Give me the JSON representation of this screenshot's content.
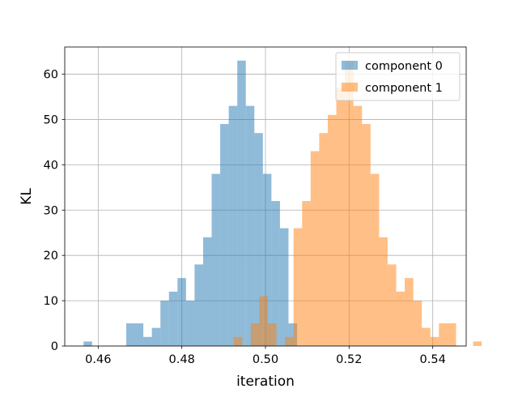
{
  "chart_data": {
    "type": "bar",
    "subtype": "overlapping-histogram",
    "title": "",
    "xlabel": "iteration",
    "ylabel": "KL",
    "xlim": [
      0.452,
      0.548
    ],
    "ylim": [
      0,
      66
    ],
    "grid": true,
    "legend_position": "top-right",
    "x_ticks": [
      {
        "value": 0.46,
        "label": "0.46"
      },
      {
        "value": 0.48,
        "label": "0.48"
      },
      {
        "value": 0.5,
        "label": "0.50"
      },
      {
        "value": 0.52,
        "label": "0.52"
      },
      {
        "value": 0.54,
        "label": "0.54"
      }
    ],
    "y_ticks": [
      {
        "value": 0,
        "label": "0"
      },
      {
        "value": 10,
        "label": "10"
      },
      {
        "value": 20,
        "label": "20"
      },
      {
        "value": 30,
        "label": "30"
      },
      {
        "value": 40,
        "label": "40"
      },
      {
        "value": 50,
        "label": "50"
      },
      {
        "value": 60,
        "label": "60"
      }
    ],
    "series": [
      {
        "name": "component 0",
        "color": "#1f77b4",
        "alpha": 0.5,
        "bin_start": 0.4565,
        "bin_width": 0.002042,
        "counts": [
          1,
          0,
          0,
          0,
          0,
          5,
          5,
          2,
          4,
          10,
          12,
          15,
          10,
          18,
          24,
          38,
          49,
          53,
          63,
          53,
          47,
          38,
          32,
          26,
          5
        ]
      },
      {
        "name": "component 1",
        "color": "#ff7f0e",
        "alpha": 0.5,
        "bin_start": 0.4924,
        "bin_width": 0.002045,
        "counts": [
          2,
          0,
          5,
          11,
          5,
          0,
          2,
          26,
          32,
          43,
          47,
          51,
          57,
          63,
          53,
          49,
          38,
          24,
          18,
          12,
          15,
          10,
          4,
          2,
          5,
          5,
          0,
          0,
          1
        ]
      }
    ]
  }
}
